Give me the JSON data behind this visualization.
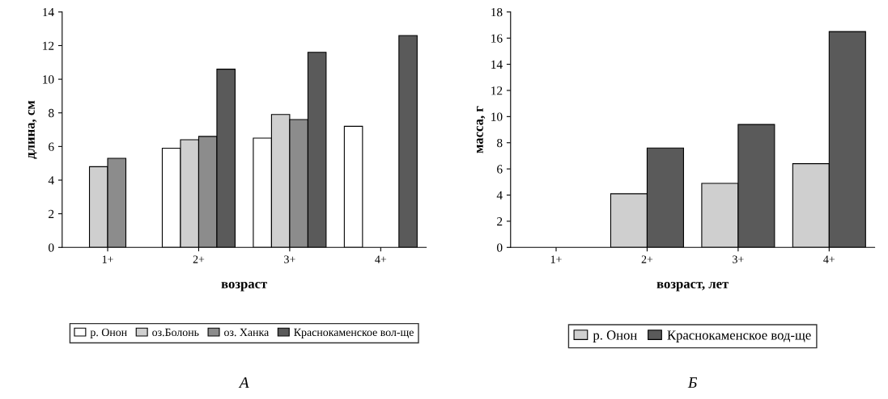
{
  "chart_data": [
    {
      "type": "bar",
      "xlabel": "возраст",
      "ylabel": "длина, см",
      "categories": [
        "1+",
        "2+",
        "3+",
        "4+"
      ],
      "ylim": [
        0,
        14
      ],
      "yticks": [
        0,
        2,
        4,
        6,
        8,
        10,
        12,
        14
      ],
      "grid": false,
      "legend": "bottom",
      "annotations": [
        "А"
      ],
      "series": [
        {
          "name": "р. Онон",
          "color": "#ffffff",
          "values": [
            null,
            5.9,
            6.5,
            7.2
          ]
        },
        {
          "name": "оз.Болонь",
          "color": "#cfcfcf",
          "values": [
            4.8,
            6.4,
            7.9,
            null
          ]
        },
        {
          "name": "оз. Ханка",
          "color": "#8c8c8c",
          "values": [
            5.3,
            6.6,
            7.6,
            null
          ]
        },
        {
          "name": "Краснокаменское вол-ще",
          "color": "#5a5a5a",
          "values": [
            null,
            10.6,
            11.6,
            12.6
          ]
        }
      ]
    },
    {
      "type": "bar",
      "xlabel": "возраст, лет",
      "ylabel": "масса, г",
      "categories": [
        "1+",
        "2+",
        "3+",
        "4+"
      ],
      "ylim": [
        0,
        18
      ],
      "yticks": [
        0,
        2,
        4,
        6,
        8,
        10,
        12,
        14,
        16,
        18
      ],
      "grid": false,
      "legend": "bottom",
      "annotations": [
        "Б"
      ],
      "series": [
        {
          "name": "р. Онон",
          "color": "#cfcfcf",
          "values": [
            null,
            4.1,
            4.9,
            6.4
          ]
        },
        {
          "name": "Краснокаменское вод-ще",
          "color": "#5a5a5a",
          "values": [
            null,
            7.6,
            9.4,
            16.5
          ]
        }
      ]
    }
  ]
}
